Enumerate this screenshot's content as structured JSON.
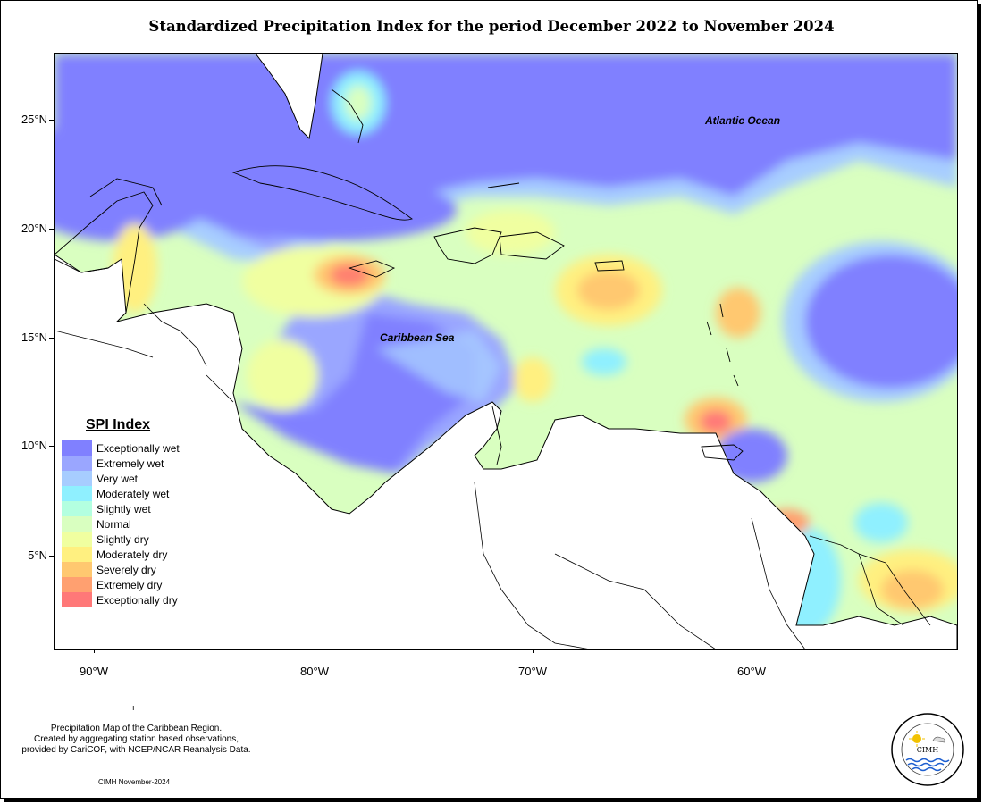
{
  "title": "Standardized Precipitation Index for the period December 2022 to November 2024",
  "map": {
    "ocean_labels": {
      "atlantic": "Atlantic Ocean",
      "caribbean": "Caribbean Sea"
    },
    "lat_ticks": [
      "25°N",
      "20°N",
      "15°N",
      "10°N",
      "5°N"
    ],
    "lon_ticks": [
      "90°W",
      "80°W",
      "70°W",
      "60°W"
    ]
  },
  "legend": {
    "title": "SPI Index",
    "items": [
      {
        "label": "Exceptionally wet",
        "color": "#8080ff"
      },
      {
        "label": "Extremely wet",
        "color": "#9aa6ff"
      },
      {
        "label": "Very wet",
        "color": "#a7cdff"
      },
      {
        "label": "Moderately wet",
        "color": "#8ff0ff"
      },
      {
        "label": "Slightly wet",
        "color": "#b3ffe0"
      },
      {
        "label": "Normal",
        "color": "#d9ffc0"
      },
      {
        "label": "Slightly dry",
        "color": "#f0ffa0"
      },
      {
        "label": "Moderately dry",
        "color": "#fff080"
      },
      {
        "label": "Severely dry",
        "color": "#ffc870"
      },
      {
        "label": "Extremely dry",
        "color": "#ffa070"
      },
      {
        "label": "Exceptionally dry",
        "color": "#ff7878"
      }
    ]
  },
  "credits": {
    "line1": "Precipitation Map of the Caribbean Region.",
    "line2": "Created by aggregating station based observations,",
    "line3": "provided by CariCOF, with NCEP/NCAR Reanalysis Data.",
    "stamp": "CIMH November-2024"
  }
}
